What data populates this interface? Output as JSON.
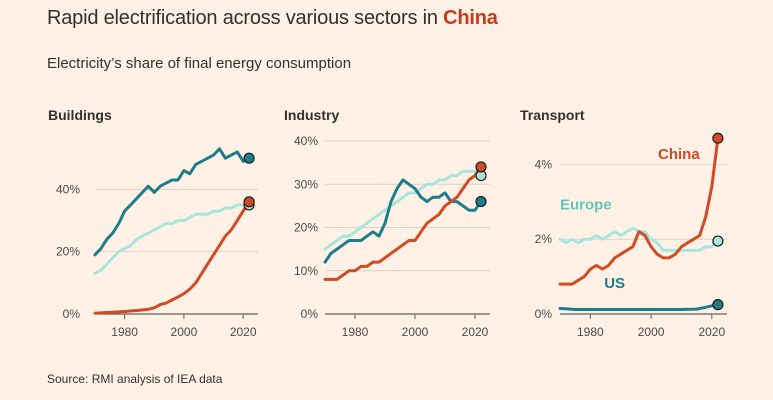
{
  "header": {
    "title_prefix": "Rapid electrification across various sectors in ",
    "title_highlight": "China",
    "subtitle": "Electricity’s share of final energy consumption",
    "source": "Source: RMI analysis of IEA data"
  },
  "colors": {
    "background": "#fff1e5",
    "china": "#d14b24",
    "europe": "#a6e6dd",
    "us": "#1e7d8a"
  },
  "chart_data": [
    {
      "type": "line",
      "title": "Buildings",
      "xlim": [
        1970,
        2025
      ],
      "ylim": [
        0,
        60
      ],
      "x_ticks": [
        1980,
        2000,
        2020
      ],
      "y_ticks": [
        0,
        20,
        40
      ],
      "y_tick_labels": [
        "0%",
        "20%",
        "40%"
      ],
      "grid": true,
      "series": [
        {
          "key": "us",
          "x": [
            1970,
            1972,
            1974,
            1976,
            1978,
            1980,
            1982,
            1984,
            1986,
            1988,
            1990,
            1992,
            1994,
            1996,
            1998,
            2000,
            2002,
            2004,
            2006,
            2008,
            2010,
            2012,
            2014,
            2016,
            2018,
            2020,
            2022
          ],
          "y": [
            19,
            21,
            24,
            26,
            29,
            33,
            35,
            37,
            39,
            41,
            39,
            41,
            42,
            43,
            43,
            46,
            45,
            48,
            49,
            50,
            51,
            53,
            50,
            51,
            52,
            49,
            50
          ]
        },
        {
          "key": "europe",
          "x": [
            1970,
            1972,
            1974,
            1976,
            1978,
            1980,
            1982,
            1984,
            1986,
            1988,
            1990,
            1992,
            1994,
            1996,
            1998,
            2000,
            2002,
            2004,
            2006,
            2008,
            2010,
            2012,
            2014,
            2016,
            2018,
            2020,
            2022
          ],
          "y": [
            13,
            14,
            16,
            18,
            20,
            21,
            22,
            24,
            25,
            26,
            27,
            28,
            29,
            29,
            30,
            30,
            31,
            32,
            32,
            32,
            33,
            33,
            34,
            34,
            35,
            35,
            35
          ]
        },
        {
          "key": "china",
          "x": [
            1970,
            1975,
            1980,
            1985,
            1988,
            1990,
            1992,
            1994,
            1996,
            1998,
            2000,
            2002,
            2004,
            2006,
            2008,
            2010,
            2012,
            2014,
            2016,
            2018,
            2020,
            2022
          ],
          "y": [
            0.3,
            0.5,
            0.8,
            1.2,
            1.5,
            2,
            3,
            3.5,
            4.5,
            5.5,
            6.5,
            8,
            10,
            13,
            16,
            19,
            22,
            25,
            27,
            30,
            33,
            36
          ]
        }
      ]
    },
    {
      "type": "line",
      "title": "Industry",
      "xlim": [
        1970,
        2025
      ],
      "ylim": [
        0,
        40
      ],
      "x_ticks": [
        1980,
        2000,
        2020
      ],
      "y_ticks": [
        0,
        10,
        20,
        30,
        40
      ],
      "y_tick_labels": [
        "0%",
        "10%",
        "20%",
        "30%",
        "40%"
      ],
      "grid": true,
      "series": [
        {
          "key": "us",
          "x": [
            1970,
            1972,
            1974,
            1976,
            1978,
            1980,
            1982,
            1984,
            1986,
            1988,
            1990,
            1992,
            1994,
            1996,
            1998,
            2000,
            2002,
            2004,
            2006,
            2008,
            2010,
            2012,
            2014,
            2016,
            2018,
            2020,
            2022
          ],
          "y": [
            12,
            14,
            15,
            16,
            17,
            17,
            17,
            18,
            19,
            18,
            21,
            26,
            29,
            31,
            30,
            29,
            27,
            26,
            27,
            27,
            28,
            26,
            26,
            25,
            24,
            24,
            26
          ]
        },
        {
          "key": "europe",
          "x": [
            1970,
            1972,
            1974,
            1976,
            1978,
            1980,
            1982,
            1984,
            1986,
            1988,
            1990,
            1992,
            1994,
            1996,
            1998,
            2000,
            2002,
            2004,
            2006,
            2008,
            2010,
            2012,
            2014,
            2016,
            2018,
            2020,
            2022
          ],
          "y": [
            15,
            16,
            17,
            18,
            18,
            19,
            20,
            21,
            22,
            23,
            24,
            25,
            26,
            27,
            28,
            28,
            29,
            30,
            30,
            31,
            31,
            32,
            32,
            33,
            33,
            33,
            32
          ]
        },
        {
          "key": "china",
          "x": [
            1970,
            1972,
            1974,
            1976,
            1978,
            1980,
            1982,
            1984,
            1986,
            1988,
            1990,
            1992,
            1994,
            1996,
            1998,
            2000,
            2002,
            2004,
            2006,
            2008,
            2010,
            2012,
            2014,
            2016,
            2018,
            2020,
            2022
          ],
          "y": [
            8,
            8,
            8,
            9,
            10,
            10,
            11,
            11,
            12,
            12,
            13,
            14,
            15,
            16,
            17,
            17,
            19,
            21,
            22,
            23,
            25,
            26,
            27,
            29,
            31,
            32,
            34
          ]
        }
      ]
    },
    {
      "type": "line",
      "title": "Transport",
      "xlim": [
        1970,
        2025
      ],
      "ylim": [
        0,
        5
      ],
      "x_ticks": [
        1980,
        2000,
        2020
      ],
      "y_ticks": [
        0,
        2,
        4
      ],
      "y_tick_labels": [
        "0%",
        "2%",
        "4%"
      ],
      "grid": true,
      "series": [
        {
          "key": "us",
          "name": "US",
          "x": [
            1970,
            1975,
            1980,
            1985,
            1990,
            1995,
            2000,
            2005,
            2010,
            2015,
            2018,
            2020,
            2022
          ],
          "y": [
            0.15,
            0.12,
            0.12,
            0.12,
            0.12,
            0.12,
            0.12,
            0.12,
            0.12,
            0.13,
            0.18,
            0.22,
            0.25
          ]
        },
        {
          "key": "europe",
          "name": "Europe",
          "x": [
            1970,
            1972,
            1974,
            1976,
            1978,
            1980,
            1982,
            1984,
            1986,
            1988,
            1990,
            1992,
            1994,
            1996,
            1998,
            2000,
            2002,
            2004,
            2006,
            2008,
            2010,
            2012,
            2014,
            2016,
            2018,
            2020,
            2022
          ],
          "y": [
            2.0,
            1.9,
            2.0,
            1.9,
            2.0,
            2.0,
            2.1,
            2.0,
            2.1,
            2.2,
            2.1,
            2.2,
            2.3,
            2.2,
            2.2,
            2.0,
            1.9,
            1.7,
            1.7,
            1.7,
            1.7,
            1.7,
            1.7,
            1.7,
            1.8,
            1.8,
            1.95
          ]
        },
        {
          "key": "china",
          "name": "China",
          "x": [
            1970,
            1972,
            1974,
            1976,
            1978,
            1980,
            1982,
            1984,
            1986,
            1988,
            1990,
            1992,
            1994,
            1996,
            1998,
            2000,
            2002,
            2004,
            2006,
            2008,
            2010,
            2012,
            2014,
            2016,
            2018,
            2020,
            2022
          ],
          "y": [
            0.8,
            0.8,
            0.8,
            0.9,
            1.0,
            1.2,
            1.3,
            1.2,
            1.3,
            1.5,
            1.6,
            1.7,
            1.8,
            2.2,
            2.1,
            1.8,
            1.6,
            1.5,
            1.5,
            1.6,
            1.8,
            1.9,
            2.0,
            2.1,
            2.6,
            3.4,
            4.7
          ]
        }
      ]
    }
  ]
}
